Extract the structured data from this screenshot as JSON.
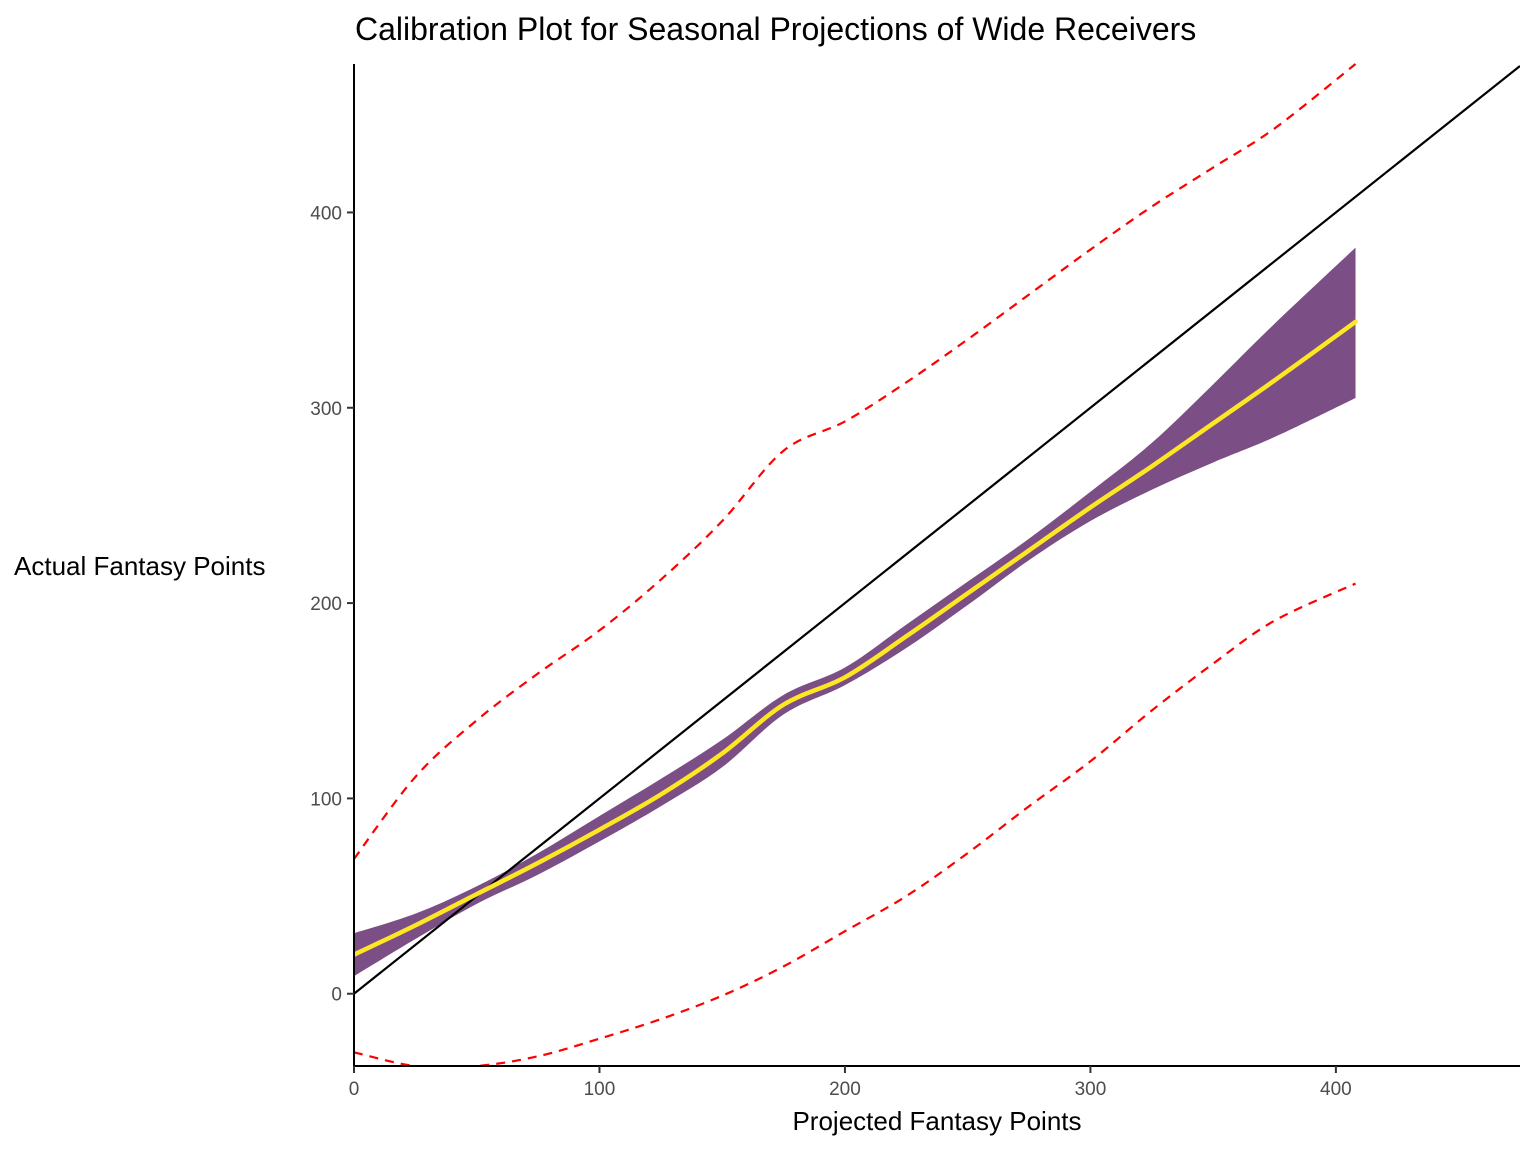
{
  "chart_data": {
    "type": "line",
    "title": "Calibration Plot for Seasonal Projections of Wide Receivers",
    "xlabel": "Projected Fantasy Points",
    "ylabel": "Actual Fantasy Points",
    "xlim": [
      0,
      475
    ],
    "ylim": [
      -37,
      476
    ],
    "x_ticks": [
      0,
      100,
      200,
      300,
      400
    ],
    "y_ticks": [
      0,
      100,
      200,
      300,
      400
    ],
    "grid": false,
    "legend": "none",
    "series": [
      {
        "kind": "reference_line",
        "color": "#000000",
        "x": [
          0,
          475
        ],
        "y": [
          0,
          475
        ]
      },
      {
        "kind": "smooth_fit",
        "color": "#FDE725",
        "x": [
          0,
          25,
          50,
          75,
          100,
          125,
          150,
          175,
          200,
          225,
          250,
          275,
          300,
          325,
          350,
          375,
          408
        ],
        "y": [
          20,
          35,
          51,
          67,
          84,
          102,
          123,
          148,
          162,
          183,
          205,
          227,
          249,
          270,
          292,
          314,
          344
        ]
      },
      {
        "kind": "confidence_band",
        "color": "#7B4F85",
        "x": [
          0,
          25,
          50,
          75,
          100,
          125,
          150,
          175,
          200,
          225,
          250,
          275,
          300,
          325,
          350,
          375,
          408
        ],
        "lower": [
          9,
          28,
          46,
          61,
          78,
          96,
          116,
          143,
          158,
          177,
          199,
          222,
          242,
          258,
          272,
          285,
          305
        ],
        "upper": [
          31,
          41,
          55,
          72,
          91,
          110,
          130,
          153,
          167,
          189,
          211,
          233,
          257,
          282,
          312,
          343,
          382
        ]
      },
      {
        "kind": "prediction_interval_upper",
        "color": "#FF0000",
        "dash": true,
        "x": [
          0,
          25,
          50,
          75,
          100,
          125,
          150,
          175,
          200,
          225,
          250,
          275,
          300,
          325,
          350,
          375,
          408
        ],
        "y": [
          69,
          111,
          140,
          164,
          186,
          212,
          242,
          278,
          293,
          313,
          335,
          358,
          381,
          403,
          423,
          443,
          476
        ]
      },
      {
        "kind": "prediction_interval_lower",
        "color": "#FF0000",
        "dash": true,
        "x": [
          0,
          25,
          50,
          75,
          100,
          125,
          150,
          175,
          200,
          225,
          250,
          275,
          300,
          325,
          350,
          375,
          408
        ],
        "y": [
          -30,
          -37,
          -37,
          -32,
          -23,
          -13,
          -1,
          14,
          32,
          50,
          72,
          96,
          119,
          145,
          169,
          191,
          210
        ]
      }
    ]
  }
}
